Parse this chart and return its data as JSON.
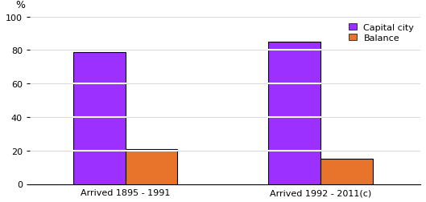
{
  "categories": [
    "Arrived 1895 - 1991",
    "Arrived 1992 - 2011(c)"
  ],
  "capital_city": [
    79,
    85
  ],
  "balance": [
    21,
    15
  ],
  "capital_city_color": "#9B30FF",
  "balance_color": "#E8732A",
  "bar_edge_color": "#000000",
  "bar_edge_width": 0.8,
  "ylabel": "%",
  "ylim": [
    0,
    100
  ],
  "yticks": [
    0,
    20,
    40,
    60,
    80,
    100
  ],
  "legend_labels": [
    "Capital city",
    "Balance"
  ],
  "bar_width": 0.12,
  "group_centers": [
    0.27,
    0.72
  ],
  "background_color": "#ffffff",
  "grid_color": "#ffffff",
  "axis_label_fontsize": 9,
  "legend_fontsize": 8,
  "tick_fontsize": 8,
  "white_line_yticks": [
    20,
    40,
    60,
    80
  ]
}
